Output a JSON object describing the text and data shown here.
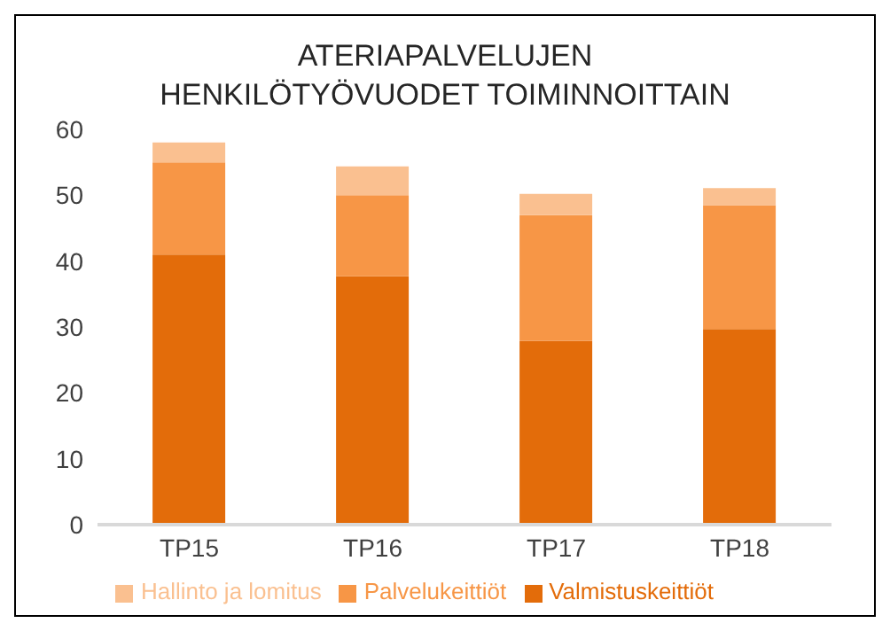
{
  "chart_data": {
    "type": "bar",
    "title": "ATERIAPALVELUJEN HENKILÖTYÖVUODET TOIMINNOITTAIN",
    "categories": [
      "TP15",
      "TP16",
      "TP17",
      "TP18"
    ],
    "stacked": true,
    "ylim": [
      0,
      60
    ],
    "yticks": [
      0,
      10,
      20,
      30,
      40,
      50,
      60
    ],
    "grid": false,
    "legend": "bottom",
    "series": [
      {
        "name": "Valmistuskeittiöt",
        "color": "#e36c0a",
        "values": [
          41.0,
          37.7,
          27.9,
          29.7
        ]
      },
      {
        "name": "Palvelukeittiöt",
        "color": "#f79646",
        "values": [
          14.0,
          12.3,
          19.1,
          18.8
        ]
      },
      {
        "name": "Hallinto ja lomitus",
        "color": "#fac090",
        "values": [
          3.0,
          4.4,
          3.2,
          2.6
        ]
      }
    ]
  }
}
